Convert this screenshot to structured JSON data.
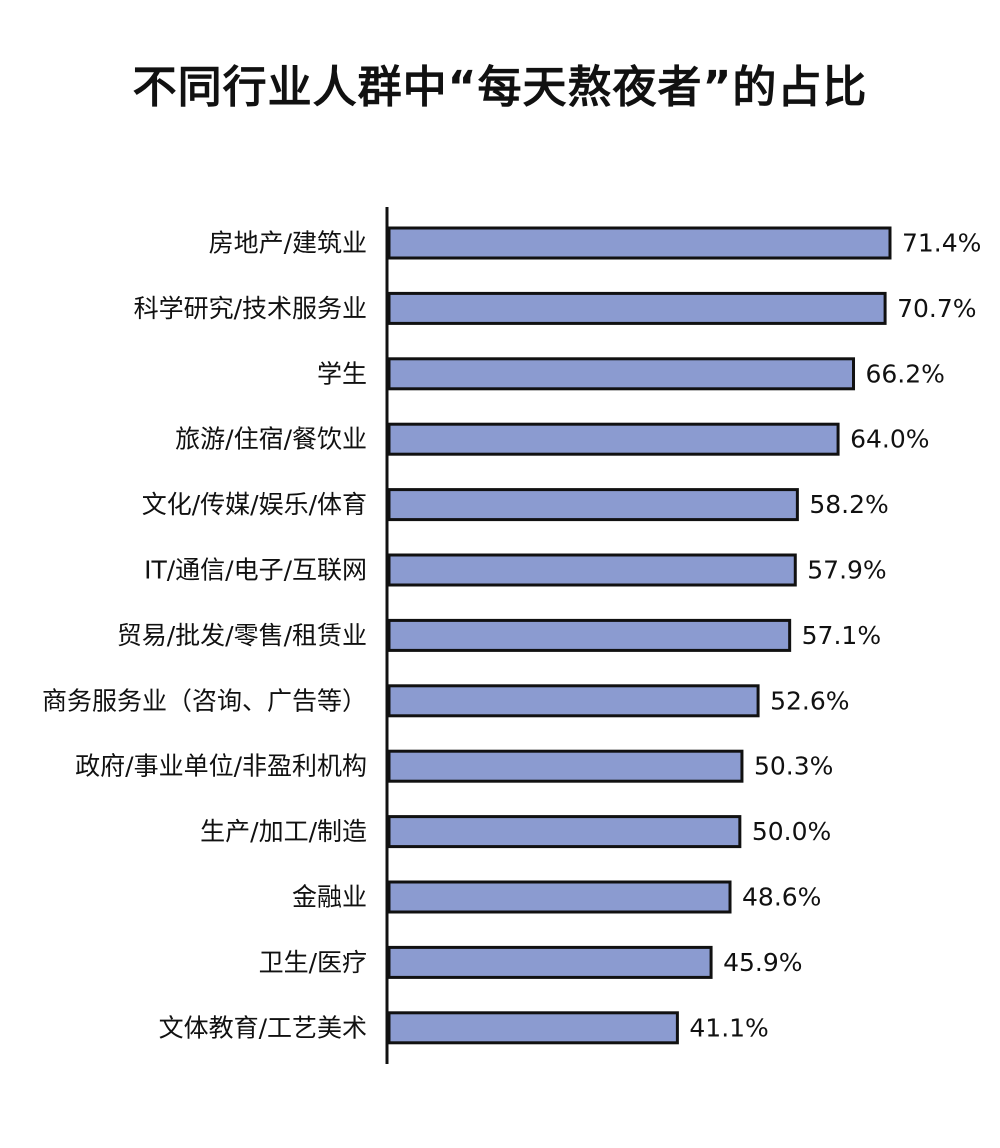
{
  "chart_data": {
    "type": "bar",
    "orientation": "horizontal",
    "title": "不同行业人群中“每天熬夜者”的占比",
    "unit": "%",
    "bar_color": "#8b9bd0",
    "bar_border_color": "#111111",
    "grid": false,
    "legend": "none",
    "xlim": [
      0,
      71.4
    ],
    "categories": [
      "房地产/建筑业",
      "科学研究/技术服务业",
      "学生",
      "旅游/住宿/餐饮业",
      "文化/传媒/娱乐/体育",
      "IT/通信/电子/互联网",
      "贸易/批发/零售/租赁业",
      "商务服务业（咨询、广告等）",
      "政府/事业单位/非盈利机构",
      "生产/加工/制造",
      "金融业",
      "卫生/医疗",
      "文体教育/工艺美术"
    ],
    "values": [
      71.4,
      70.7,
      66.2,
      64.0,
      58.2,
      57.9,
      57.1,
      52.6,
      50.3,
      50.0,
      48.6,
      45.9,
      41.1
    ],
    "value_labels": [
      "71.4%",
      "70.7%",
      "66.2%",
      "64.0%",
      "58.2%",
      "57.9%",
      "57.1%",
      "52.6%",
      "50.3%",
      "50.0%",
      "48.6%",
      "45.9%",
      "41.1%"
    ]
  }
}
